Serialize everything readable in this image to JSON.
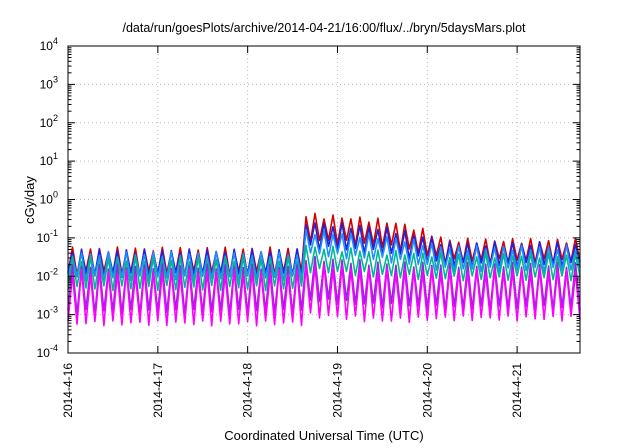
{
  "chart_data": {
    "type": "line",
    "title": "/data/run/goesPlots/archive/2014-04-21/16:00/flux/../bryn/5daysMars.plot",
    "xlabel": "Coordinated Universal Time (UTC)",
    "ylabel": "cGy/day",
    "yscale": "log",
    "ylim_exp": [
      -4,
      4
    ],
    "y_tick_exponents": [
      -4,
      -3,
      -2,
      -1,
      0,
      1,
      2,
      3,
      4
    ],
    "xlim_days": [
      0,
      5.7
    ],
    "x_ticks": [
      {
        "label": "2014-4-16",
        "day": 0
      },
      {
        "label": "2014-4-17",
        "day": 1
      },
      {
        "label": "2014-4-18",
        "day": 2
      },
      {
        "label": "2014-4-19",
        "day": 3
      },
      {
        "label": "2014-4-20",
        "day": 4
      },
      {
        "label": "2014-4-21",
        "day": 5
      }
    ],
    "grid": true,
    "legend": "none",
    "sawtooth_period_days": 0.1,
    "event_start_day": 2.6,
    "series": [
      {
        "color": "#d40000",
        "base_peak": 0.05,
        "base_trough": 0.012,
        "event_peak": 0.4,
        "event_trough": 0.09,
        "late_peak": 0.085,
        "late_trough": 0.025
      },
      {
        "color": "#2222dd",
        "base_peak": 0.045,
        "base_trough": 0.011,
        "event_peak": 0.25,
        "event_trough": 0.06,
        "late_peak": 0.07,
        "late_trough": 0.02
      },
      {
        "color": "#1e90ff",
        "base_peak": 0.038,
        "base_trough": 0.009,
        "event_peak": 0.15,
        "event_trough": 0.04,
        "late_peak": 0.055,
        "late_trough": 0.015
      },
      {
        "color": "#00b890",
        "base_peak": 0.028,
        "base_trough": 0.005,
        "event_peak": 0.06,
        "event_trough": 0.015,
        "late_peak": 0.035,
        "late_trough": 0.009
      },
      {
        "color": "#8a2be2",
        "base_peak": 0.018,
        "base_trough": 0.0012,
        "event_peak": 0.03,
        "event_trough": 0.0025,
        "late_peak": 0.02,
        "late_trough": 0.0015
      },
      {
        "color": "#ff00ff",
        "base_peak": 0.013,
        "base_trough": 0.0006,
        "event_peak": 0.02,
        "event_trough": 0.001,
        "late_peak": 0.014,
        "late_trough": 0.0008
      }
    ]
  }
}
